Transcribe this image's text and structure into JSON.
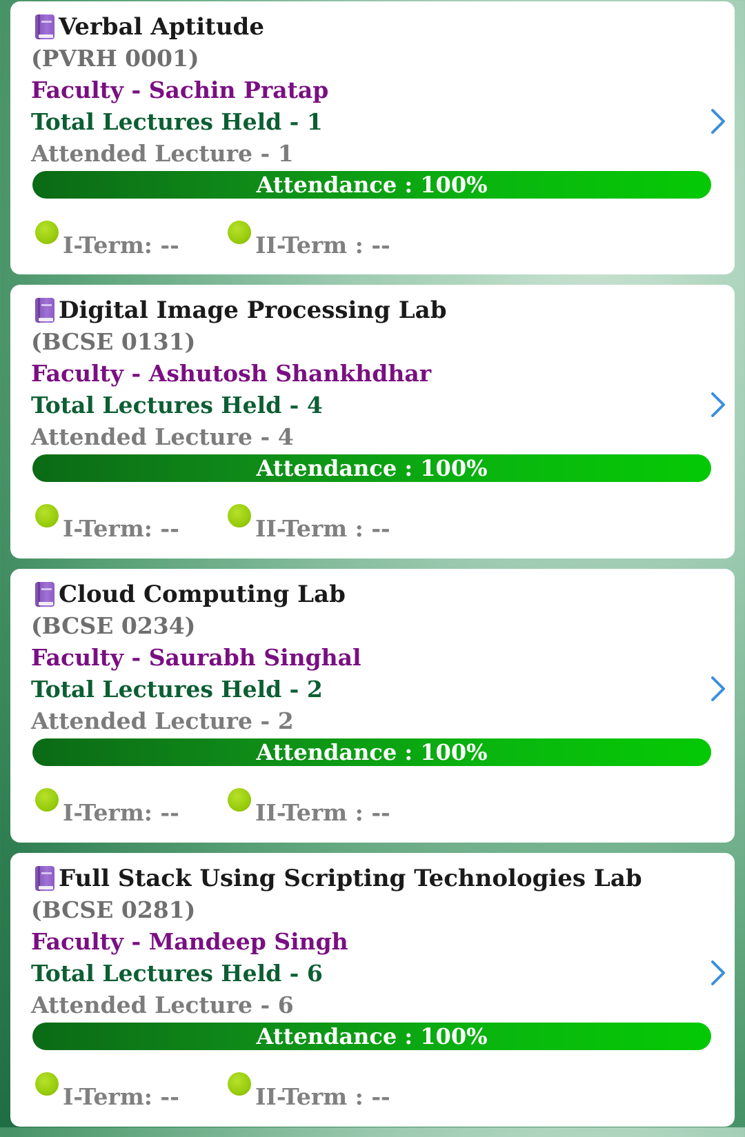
{
  "courses": [
    {
      "name": "Verbal Aptitude",
      "code": "(PVRH 0001)",
      "faculty": "Faculty  - Sachin Pratap",
      "held": "Total Lectures Held - 1",
      "attended": "Attended Lecture - 1",
      "attendance_text": "Attendance : 100%",
      "attendance_percent": 100,
      "term1": "I-Term: --",
      "term2": "II-Term : --"
    },
    {
      "name": "Digital Image Processing Lab",
      "code": "(BCSE 0131)",
      "faculty": "Faculty  - Ashutosh Shankhdhar",
      "held": "Total Lectures Held - 4",
      "attended": "Attended Lecture - 4",
      "attendance_text": "Attendance : 100%",
      "attendance_percent": 100,
      "term1": "I-Term: --",
      "term2": "II-Term : --"
    },
    {
      "name": "Cloud Computing Lab",
      "code": "(BCSE 0234)",
      "faculty": "Faculty  - Saurabh Singhal",
      "held": "Total Lectures Held - 2",
      "attended": "Attended Lecture - 2",
      "attendance_text": "Attendance : 100%",
      "attendance_percent": 100,
      "term1": "I-Term: --",
      "term2": "II-Term : --"
    },
    {
      "name": "Full Stack Using Scripting Technologies Lab",
      "code": "(BCSE 0281)",
      "faculty": "Faculty  - Mandeep Singh",
      "held": "Total Lectures Held - 6",
      "attended": "Attended Lecture - 6",
      "attendance_text": "Attendance : 100%",
      "attendance_percent": 100,
      "term1": "I-Term: --",
      "term2": "II-Term : --"
    }
  ],
  "icons": {
    "subject": "book-icon",
    "open": "chevron-right-icon",
    "term_status": "status-dot-icon"
  },
  "colors": {
    "faculty": "#7a0f82",
    "lectures_held": "#0c5e33",
    "attendance_bar_start": "#0b6a16",
    "attendance_bar_end": "#05c904",
    "term_dot": "#98cc0c",
    "chevron": "#3a8fe0"
  }
}
